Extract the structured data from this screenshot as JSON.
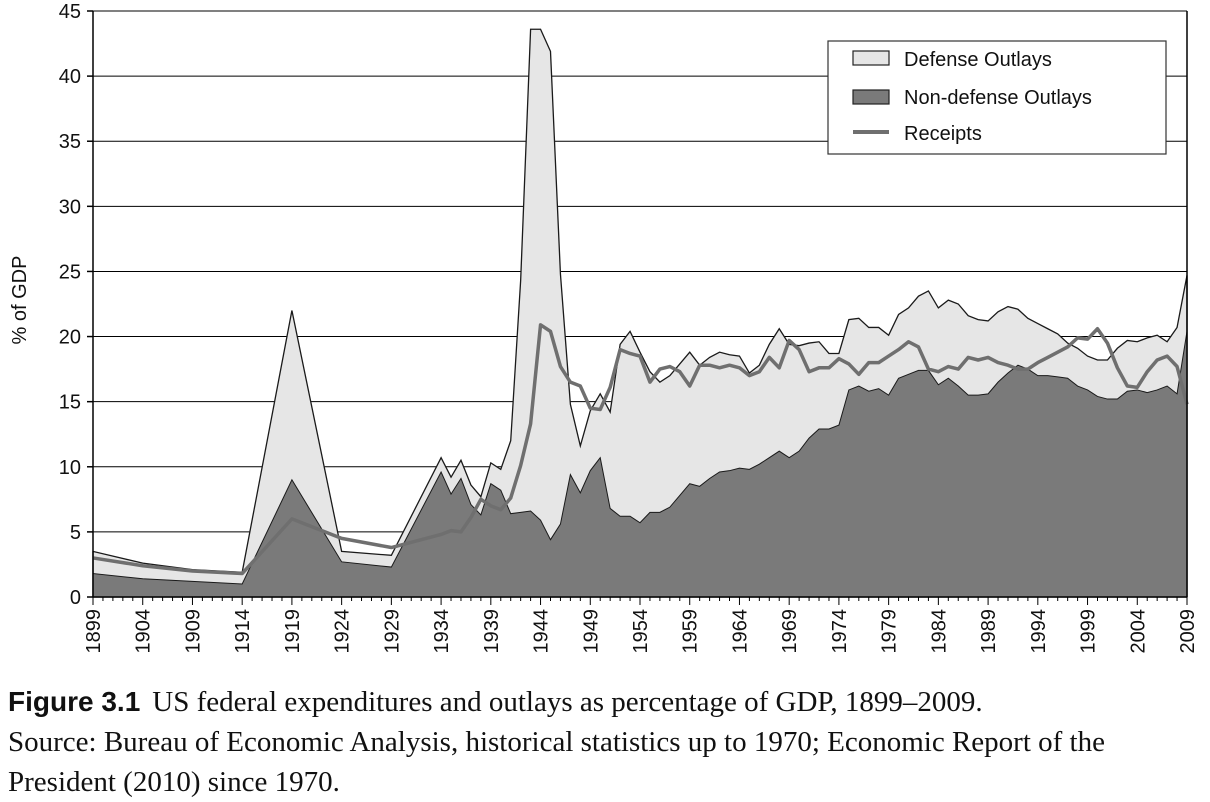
{
  "colors": {
    "defense": "#e6e6e6",
    "nondefense": "#7a7a7a",
    "receipts": "#6f6f6f",
    "outline": "#1a1a1a",
    "grid": "#000000"
  },
  "caption": {
    "label": "Figure 3.1",
    "title": "US federal expenditures and outlays as percentage of GDP, 1899–2009.",
    "source": "Source: Bureau of Economic Analysis, historical statistics up to 1970; Economic Report of the President (2010) since 1970."
  },
  "chart_data": {
    "type": "area",
    "ylabel": "% of GDP",
    "xlabel": "",
    "ylim": [
      0,
      45
    ],
    "xlim": [
      1899,
      2009
    ],
    "yticks": [
      0,
      5,
      10,
      15,
      20,
      25,
      30,
      35,
      40,
      45
    ],
    "xticks": [
      1899,
      1904,
      1909,
      1914,
      1919,
      1924,
      1929,
      1934,
      1939,
      1944,
      1949,
      1954,
      1959,
      1964,
      1969,
      1974,
      1979,
      1984,
      1989,
      1994,
      1999,
      2004,
      2009
    ],
    "grid": true,
    "legend_position": "top-right",
    "legend": [
      "Defense Outlays",
      "Non-defense Outlays",
      "Receipts"
    ],
    "series": [
      {
        "name": "Defense Outlays",
        "kind": "stacked-area-top",
        "points": [
          [
            1899,
            3.5
          ],
          [
            1904,
            2.6
          ],
          [
            1909,
            2.1
          ],
          [
            1914,
            1.9
          ],
          [
            1919,
            22.0
          ],
          [
            1924,
            3.5
          ],
          [
            1929,
            3.2
          ],
          [
            1934,
            10.7
          ],
          [
            1935,
            9.2
          ],
          [
            1936,
            10.5
          ],
          [
            1937,
            8.6
          ],
          [
            1938,
            7.7
          ],
          [
            1939,
            10.3
          ],
          [
            1940,
            9.8
          ],
          [
            1941,
            12.0
          ],
          [
            1942,
            24.3
          ],
          [
            1943,
            43.6
          ],
          [
            1944,
            43.6
          ],
          [
            1945,
            41.9
          ],
          [
            1946,
            24.8
          ],
          [
            1947,
            14.8
          ],
          [
            1948,
            11.6
          ],
          [
            1949,
            14.3
          ],
          [
            1950,
            15.6
          ],
          [
            1951,
            14.2
          ],
          [
            1952,
            19.4
          ],
          [
            1953,
            20.4
          ],
          [
            1954,
            18.8
          ],
          [
            1955,
            17.3
          ],
          [
            1956,
            16.5
          ],
          [
            1957,
            17.0
          ],
          [
            1958,
            17.9
          ],
          [
            1959,
            18.8
          ],
          [
            1960,
            17.8
          ],
          [
            1961,
            18.4
          ],
          [
            1962,
            18.8
          ],
          [
            1963,
            18.6
          ],
          [
            1964,
            18.5
          ],
          [
            1965,
            17.2
          ],
          [
            1966,
            17.8
          ],
          [
            1967,
            19.4
          ],
          [
            1968,
            20.6
          ],
          [
            1969,
            19.4
          ],
          [
            1970,
            19.3
          ],
          [
            1971,
            19.5
          ],
          [
            1972,
            19.6
          ],
          [
            1973,
            18.7
          ],
          [
            1974,
            18.7
          ],
          [
            1975,
            21.3
          ],
          [
            1976,
            21.4
          ],
          [
            1977,
            20.7
          ],
          [
            1978,
            20.7
          ],
          [
            1979,
            20.1
          ],
          [
            1980,
            21.7
          ],
          [
            1981,
            22.2
          ],
          [
            1982,
            23.1
          ],
          [
            1983,
            23.5
          ],
          [
            1984,
            22.2
          ],
          [
            1985,
            22.8
          ],
          [
            1986,
            22.5
          ],
          [
            1987,
            21.6
          ],
          [
            1988,
            21.3
          ],
          [
            1989,
            21.2
          ],
          [
            1990,
            21.9
          ],
          [
            1991,
            22.3
          ],
          [
            1992,
            22.1
          ],
          [
            1993,
            21.4
          ],
          [
            1994,
            21.0
          ],
          [
            1995,
            20.6
          ],
          [
            1996,
            20.2
          ],
          [
            1997,
            19.5
          ],
          [
            1998,
            19.1
          ],
          [
            1999,
            18.5
          ],
          [
            2000,
            18.2
          ],
          [
            2001,
            18.2
          ],
          [
            2002,
            19.1
          ],
          [
            2003,
            19.7
          ],
          [
            2004,
            19.6
          ],
          [
            2005,
            19.9
          ],
          [
            2006,
            20.1
          ],
          [
            2007,
            19.6
          ],
          [
            2008,
            20.7
          ],
          [
            2009,
            24.7
          ]
        ]
      },
      {
        "name": "Non-defense Outlays",
        "kind": "area",
        "points": [
          [
            1899,
            1.8
          ],
          [
            1904,
            1.4
          ],
          [
            1909,
            1.2
          ],
          [
            1914,
            1.0
          ],
          [
            1919,
            9.0
          ],
          [
            1924,
            2.7
          ],
          [
            1929,
            2.3
          ],
          [
            1934,
            9.6
          ],
          [
            1935,
            7.9
          ],
          [
            1936,
            9.1
          ],
          [
            1937,
            7.1
          ],
          [
            1938,
            6.3
          ],
          [
            1939,
            8.7
          ],
          [
            1940,
            8.2
          ],
          [
            1941,
            6.4
          ],
          [
            1942,
            6.5
          ],
          [
            1943,
            6.6
          ],
          [
            1944,
            5.9
          ],
          [
            1945,
            4.4
          ],
          [
            1946,
            5.6
          ],
          [
            1947,
            9.4
          ],
          [
            1948,
            8.0
          ],
          [
            1949,
            9.7
          ],
          [
            1950,
            10.7
          ],
          [
            1951,
            6.8
          ],
          [
            1952,
            6.2
          ],
          [
            1953,
            6.2
          ],
          [
            1954,
            5.7
          ],
          [
            1955,
            6.5
          ],
          [
            1956,
            6.5
          ],
          [
            1957,
            6.9
          ],
          [
            1958,
            7.8
          ],
          [
            1959,
            8.7
          ],
          [
            1960,
            8.5
          ],
          [
            1961,
            9.1
          ],
          [
            1962,
            9.6
          ],
          [
            1963,
            9.7
          ],
          [
            1964,
            9.9
          ],
          [
            1965,
            9.8
          ],
          [
            1966,
            10.2
          ],
          [
            1967,
            10.7
          ],
          [
            1968,
            11.2
          ],
          [
            1969,
            10.7
          ],
          [
            1970,
            11.2
          ],
          [
            1971,
            12.2
          ],
          [
            1972,
            12.9
          ],
          [
            1973,
            12.9
          ],
          [
            1974,
            13.2
          ],
          [
            1975,
            15.9
          ],
          [
            1976,
            16.2
          ],
          [
            1977,
            15.8
          ],
          [
            1978,
            16.0
          ],
          [
            1979,
            15.5
          ],
          [
            1980,
            16.8
          ],
          [
            1981,
            17.1
          ],
          [
            1982,
            17.4
          ],
          [
            1983,
            17.4
          ],
          [
            1984,
            16.3
          ],
          [
            1985,
            16.8
          ],
          [
            1986,
            16.2
          ],
          [
            1987,
            15.5
          ],
          [
            1988,
            15.5
          ],
          [
            1989,
            15.6
          ],
          [
            1990,
            16.5
          ],
          [
            1991,
            17.2
          ],
          [
            1992,
            17.8
          ],
          [
            1993,
            17.5
          ],
          [
            1994,
            17.0
          ],
          [
            1995,
            17.0
          ],
          [
            1996,
            16.9
          ],
          [
            1997,
            16.8
          ],
          [
            1998,
            16.2
          ],
          [
            1999,
            15.9
          ],
          [
            2000,
            15.4
          ],
          [
            2001,
            15.2
          ],
          [
            2002,
            15.2
          ],
          [
            2003,
            15.8
          ],
          [
            2004,
            15.9
          ],
          [
            2005,
            15.7
          ],
          [
            2006,
            15.9
          ],
          [
            2007,
            16.2
          ],
          [
            2008,
            15.6
          ],
          [
            2009,
            20.4
          ]
        ]
      },
      {
        "name": "Receipts",
        "kind": "line",
        "points": [
          [
            1899,
            3.0
          ],
          [
            1904,
            2.4
          ],
          [
            1909,
            2.0
          ],
          [
            1914,
            1.8
          ],
          [
            1919,
            6.0
          ],
          [
            1924,
            4.5
          ],
          [
            1929,
            3.8
          ],
          [
            1934,
            4.8
          ],
          [
            1935,
            5.1
          ],
          [
            1936,
            5.0
          ],
          [
            1937,
            6.1
          ],
          [
            1938,
            7.5
          ],
          [
            1939,
            7.0
          ],
          [
            1940,
            6.7
          ],
          [
            1941,
            7.6
          ],
          [
            1942,
            10.1
          ],
          [
            1943,
            13.3
          ],
          [
            1944,
            20.9
          ],
          [
            1945,
            20.4
          ],
          [
            1946,
            17.7
          ],
          [
            1947,
            16.5
          ],
          [
            1948,
            16.2
          ],
          [
            1949,
            14.5
          ],
          [
            1950,
            14.4
          ],
          [
            1951,
            16.1
          ],
          [
            1952,
            19.0
          ],
          [
            1953,
            18.7
          ],
          [
            1954,
            18.5
          ],
          [
            1955,
            16.5
          ],
          [
            1956,
            17.5
          ],
          [
            1957,
            17.7
          ],
          [
            1958,
            17.3
          ],
          [
            1959,
            16.2
          ],
          [
            1960,
            17.8
          ],
          [
            1961,
            17.8
          ],
          [
            1962,
            17.6
          ],
          [
            1963,
            17.8
          ],
          [
            1964,
            17.6
          ],
          [
            1965,
            17.0
          ],
          [
            1966,
            17.3
          ],
          [
            1967,
            18.4
          ],
          [
            1968,
            17.6
          ],
          [
            1969,
            19.7
          ],
          [
            1970,
            19.0
          ],
          [
            1971,
            17.3
          ],
          [
            1972,
            17.6
          ],
          [
            1973,
            17.6
          ],
          [
            1974,
            18.3
          ],
          [
            1975,
            17.9
          ],
          [
            1976,
            17.1
          ],
          [
            1977,
            18.0
          ],
          [
            1978,
            18.0
          ],
          [
            1979,
            18.5
          ],
          [
            1980,
            19.0
          ],
          [
            1981,
            19.6
          ],
          [
            1982,
            19.2
          ],
          [
            1983,
            17.5
          ],
          [
            1984,
            17.3
          ],
          [
            1985,
            17.7
          ],
          [
            1986,
            17.5
          ],
          [
            1987,
            18.4
          ],
          [
            1988,
            18.2
          ],
          [
            1989,
            18.4
          ],
          [
            1990,
            18.0
          ],
          [
            1991,
            17.8
          ],
          [
            1992,
            17.5
          ],
          [
            1993,
            17.5
          ],
          [
            1994,
            18.0
          ],
          [
            1995,
            18.4
          ],
          [
            1996,
            18.8
          ],
          [
            1997,
            19.2
          ],
          [
            1998,
            19.9
          ],
          [
            1999,
            19.8
          ],
          [
            2000,
            20.6
          ],
          [
            2001,
            19.5
          ],
          [
            2002,
            17.6
          ],
          [
            2003,
            16.2
          ],
          [
            2004,
            16.1
          ],
          [
            2005,
            17.3
          ],
          [
            2006,
            18.2
          ],
          [
            2007,
            18.5
          ],
          [
            2008,
            17.7
          ],
          [
            2009,
            14.8
          ]
        ]
      }
    ]
  }
}
